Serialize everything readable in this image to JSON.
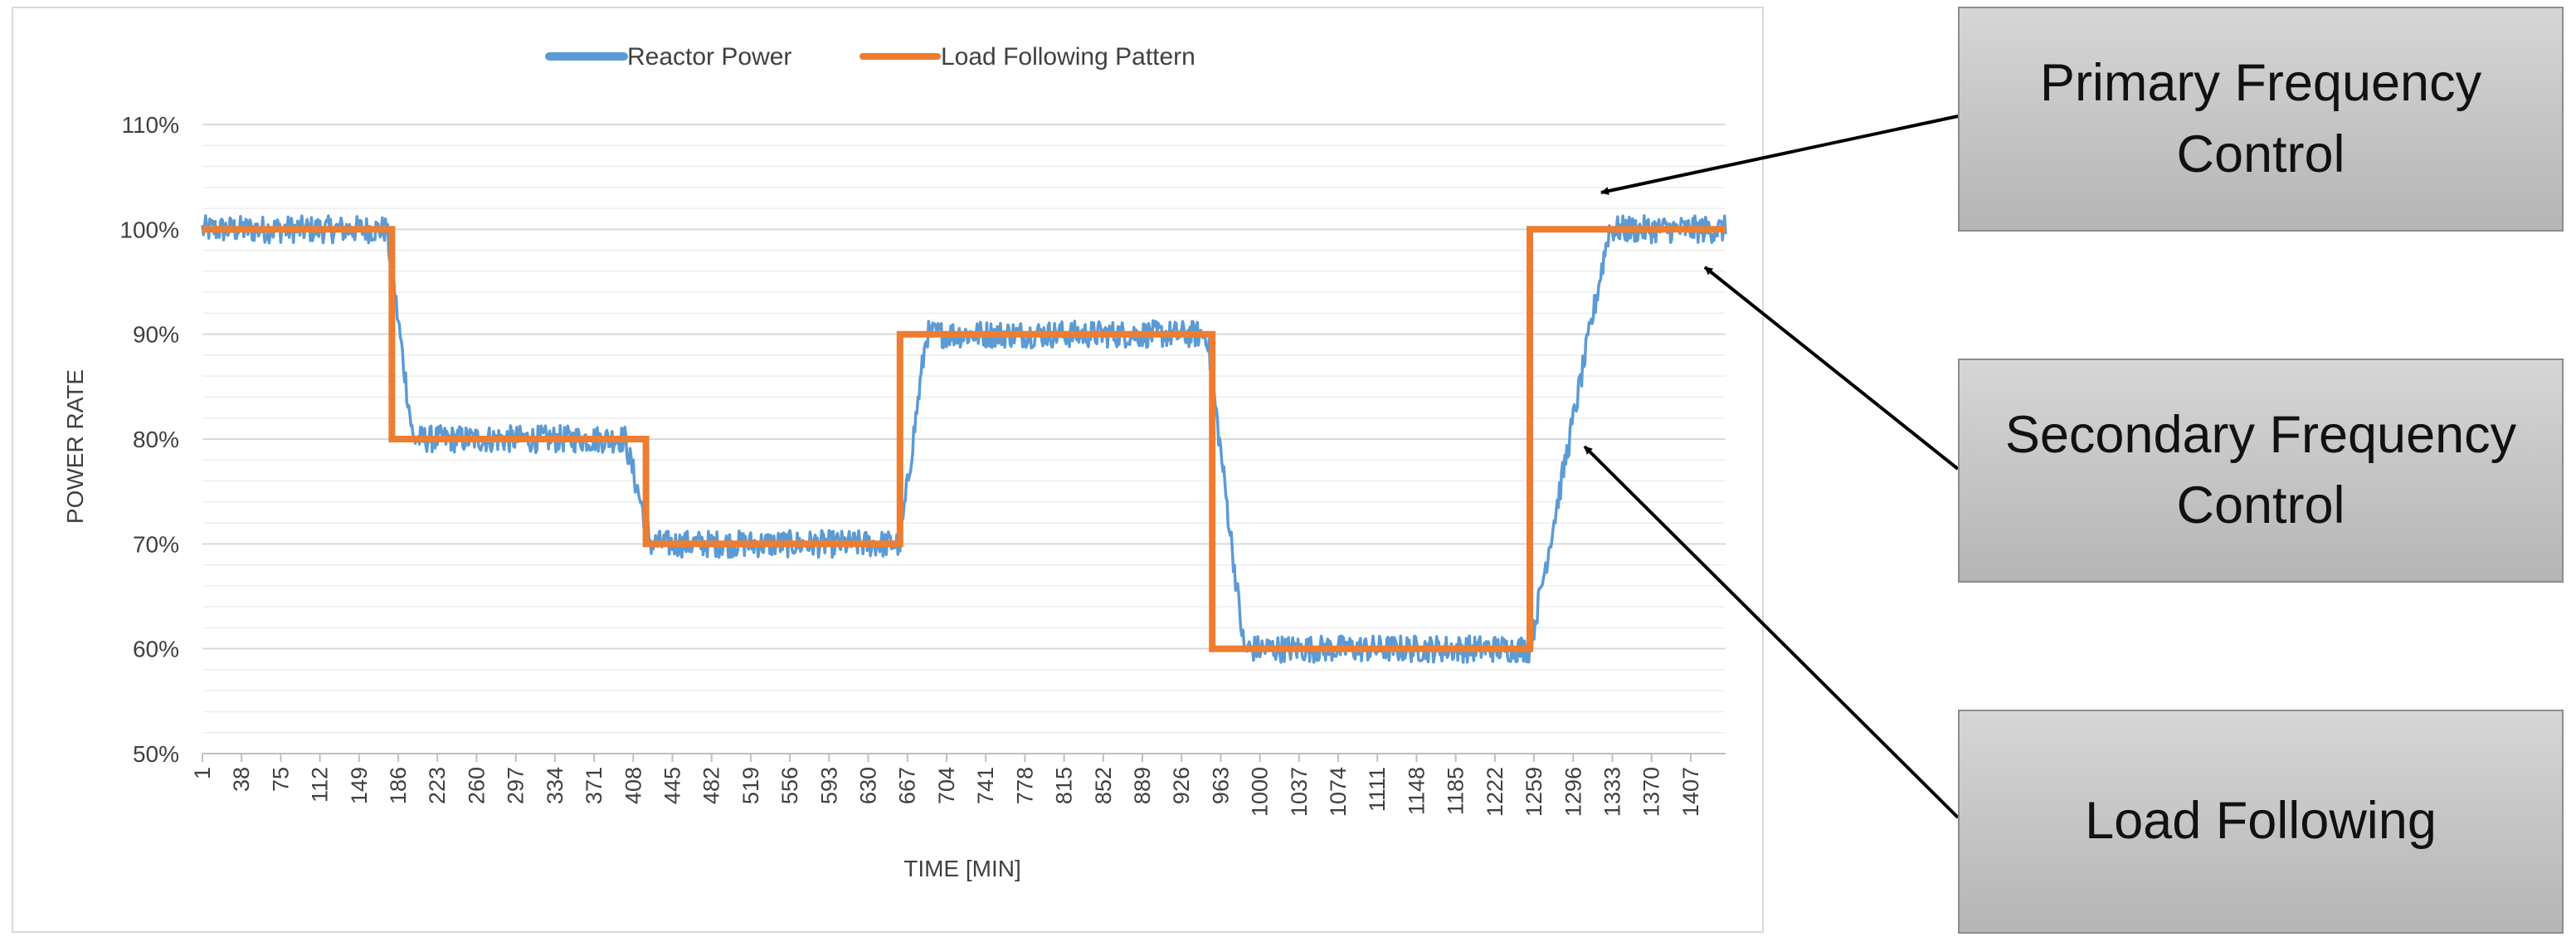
{
  "chart_data": {
    "type": "line",
    "xlabel": "TIME [MIN]",
    "ylabel": "POWER RATE",
    "ylim": [
      50,
      110
    ],
    "y_unit": "%",
    "yticks": [
      50,
      60,
      70,
      80,
      90,
      100,
      110
    ],
    "grid": true,
    "legend_position": "top",
    "x_tick_labels": [
      1,
      38,
      75,
      112,
      149,
      186,
      223,
      260,
      297,
      334,
      371,
      408,
      445,
      482,
      519,
      556,
      593,
      630,
      667,
      704,
      741,
      778,
      815,
      852,
      889,
      926,
      963,
      1000,
      1037,
      1074,
      1111,
      1148,
      1185,
      1222,
      1259,
      1296,
      1333,
      1370,
      1407
    ],
    "xlim": [
      1,
      1440
    ],
    "series": [
      {
        "name": "Reactor Power",
        "color": "#5b9bd5",
        "noise_amplitude": 1.3,
        "x": [
          1,
          175,
          200,
          400,
          425,
          660,
          685,
          950,
          985,
          1255,
          1300,
          1330,
          1440
        ],
        "y": [
          100,
          100,
          80,
          80,
          70,
          70,
          90,
          90,
          60,
          60,
          84,
          100,
          100
        ]
      },
      {
        "name": "Load Following Pattern",
        "color": "#ed7d31",
        "x": [
          1,
          180,
          180,
          420,
          420,
          660,
          660,
          955,
          955,
          1255,
          1255,
          1440
        ],
        "y": [
          100,
          100,
          80,
          80,
          70,
          70,
          90,
          90,
          60,
          60,
          100,
          100
        ]
      }
    ]
  },
  "callouts": [
    {
      "label": "Primary Frequency Control"
    },
    {
      "label": "Secondary Frequency Control"
    },
    {
      "label": "Load Following"
    }
  ],
  "colors": {
    "gridline": "#d9d9d9",
    "axis": "#bfbfbf",
    "text": "#404040",
    "arrow": "#000000"
  }
}
